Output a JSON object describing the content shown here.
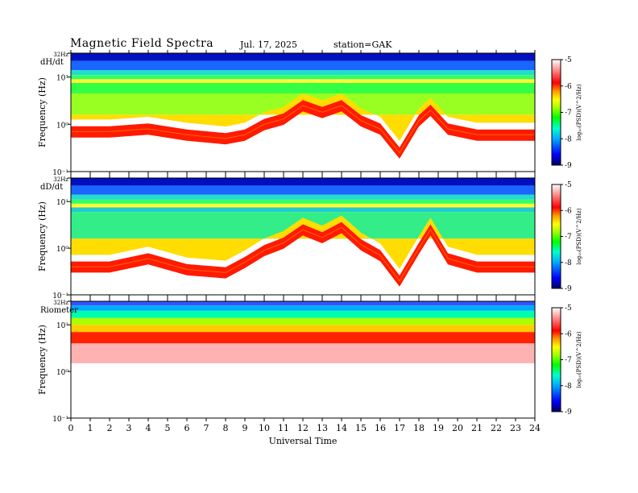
{
  "header": {
    "title": "Magnetic  Field  Spectra",
    "date": "Jul.  17,  2025",
    "station": "station=GAK"
  },
  "colors": {
    "scale": [
      "#000064",
      "#0000ff",
      "#00aaff",
      "#00ffcc",
      "#00ff00",
      "#aaff00",
      "#ffff00",
      "#ff9900",
      "#ff0000",
      "#ffffff"
    ]
  },
  "chart_data": [
    {
      "type": "heatmap",
      "panel_label": "dH/dt",
      "ylabel": "Frequency  (Hz)",
      "yticks": [
        "32Hz",
        "10¹",
        "10⁰",
        "10⁻¹"
      ],
      "ylim_hz": [
        0.1,
        32
      ],
      "xlim_hours": [
        0,
        24
      ],
      "colorbar": {
        "label": "log₁₀(PSD)(V^2/Hz)",
        "ticks": [
          "-5",
          "-6",
          "-7",
          "-8",
          "-9"
        ],
        "range": [
          -9,
          -5
        ]
      },
      "peak_frequency_trace_hz": [
        {
          "x": 0,
          "y": 0.7
        },
        {
          "x": 2,
          "y": 0.7
        },
        {
          "x": 4,
          "y": 0.8
        },
        {
          "x": 6,
          "y": 0.6
        },
        {
          "x": 8,
          "y": 0.5
        },
        {
          "x": 9,
          "y": 0.6
        },
        {
          "x": 10,
          "y": 1.0
        },
        {
          "x": 11,
          "y": 1.3
        },
        {
          "x": 12,
          "y": 2.5
        },
        {
          "x": 13,
          "y": 1.8
        },
        {
          "x": 14,
          "y": 2.5
        },
        {
          "x": 15,
          "y": 1.2
        },
        {
          "x": 16,
          "y": 0.8
        },
        {
          "x": 17,
          "y": 0.25
        },
        {
          "x": 18,
          "y": 1.2
        },
        {
          "x": 18.6,
          "y": 2.0
        },
        {
          "x": 19.5,
          "y": 0.8
        },
        {
          "x": 21,
          "y": 0.6
        },
        {
          "x": 24,
          "y": 0.6
        }
      ]
    },
    {
      "type": "heatmap",
      "panel_label": "dD/dt",
      "ylabel": "Frequency  (Hz)",
      "yticks": [
        "32Hz",
        "10¹",
        "10⁰",
        "10⁻¹"
      ],
      "ylim_hz": [
        0.1,
        32
      ],
      "xlim_hours": [
        0,
        24
      ],
      "colorbar": {
        "label": "log₁₀(PSD)(V^2/Hz)",
        "ticks": [
          "-5",
          "-6",
          "-7",
          "-8",
          "-9"
        ],
        "range": [
          -9,
          -5
        ]
      },
      "peak_frequency_trace_hz": [
        {
          "x": 0,
          "y": 0.4
        },
        {
          "x": 2,
          "y": 0.4
        },
        {
          "x": 4,
          "y": 0.6
        },
        {
          "x": 6,
          "y": 0.35
        },
        {
          "x": 8,
          "y": 0.3
        },
        {
          "x": 9,
          "y": 0.5
        },
        {
          "x": 10,
          "y": 0.9
        },
        {
          "x": 11,
          "y": 1.3
        },
        {
          "x": 12,
          "y": 2.5
        },
        {
          "x": 13,
          "y": 1.7
        },
        {
          "x": 14,
          "y": 2.8
        },
        {
          "x": 15,
          "y": 1.2
        },
        {
          "x": 16,
          "y": 0.7
        },
        {
          "x": 17,
          "y": 0.2
        },
        {
          "x": 18,
          "y": 1.0
        },
        {
          "x": 18.6,
          "y": 2.5
        },
        {
          "x": 19.5,
          "y": 0.6
        },
        {
          "x": 21,
          "y": 0.4
        },
        {
          "x": 24,
          "y": 0.4
        }
      ]
    },
    {
      "type": "heatmap",
      "panel_label": "Riometer",
      "ylabel": "Frequency  (Hz)",
      "yticks": [
        "32Hz",
        "10¹",
        "10⁰",
        "10⁻¹"
      ],
      "ylim_hz": [
        0.1,
        32
      ],
      "xlim_hours": [
        0,
        24
      ],
      "xlabel": "Universal  Time",
      "xticks": [
        "0",
        "1",
        "2",
        "3",
        "4",
        "5",
        "6",
        "7",
        "8",
        "9",
        "10",
        "11",
        "12",
        "13",
        "14",
        "15",
        "16",
        "17",
        "18",
        "19",
        "20",
        "21",
        "22",
        "23",
        "24"
      ],
      "colorbar": {
        "label": "log₁₀(PSD)(V^2/Hz)",
        "ticks": [
          "-5",
          "-6",
          "-7",
          "-8",
          "-9"
        ],
        "range": [
          -9,
          -5
        ]
      },
      "peak_frequency_trace_hz": [
        {
          "x": 0,
          "y": 4.0
        },
        {
          "x": 6,
          "y": 4.0
        },
        {
          "x": 12,
          "y": 4.0
        },
        {
          "x": 18,
          "y": 4.0
        },
        {
          "x": 24,
          "y": 4.0
        }
      ]
    }
  ]
}
